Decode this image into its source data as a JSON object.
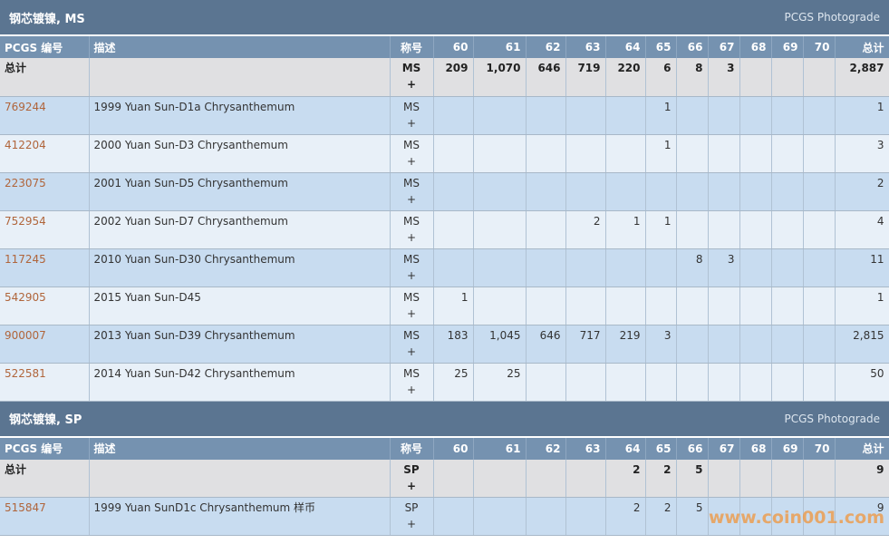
{
  "sections": [
    {
      "title": "钢芯镀镍, MS",
      "link": "PCGS Photograde",
      "header": [
        "PCGS 编号",
        "描述",
        "称号",
        "60",
        "61",
        "62",
        "63",
        "64",
        "65",
        "66",
        "67",
        "68",
        "69",
        "70",
        "总计"
      ],
      "total": {
        "label": "总计",
        "designation": "MS",
        "plus": "+",
        "counts": [
          "209",
          "1,070",
          "646",
          "719",
          "220",
          "6",
          "8",
          "3",
          null,
          null,
          null
        ],
        "total": "2,887"
      },
      "rows": [
        {
          "id": "769244",
          "description": "1999 Yuan Sun-D1a Chrysanthemum",
          "designation": "MS",
          "plus": "+",
          "counts": [
            null,
            null,
            null,
            null,
            null,
            "1",
            null,
            null,
            null,
            null,
            null
          ],
          "total": "1"
        },
        {
          "id": "412204",
          "description": "2000 Yuan Sun-D3 Chrysanthemum",
          "designation": "MS",
          "plus": "+",
          "counts": [
            null,
            null,
            null,
            null,
            null,
            "1",
            null,
            null,
            null,
            null,
            null
          ],
          "total": "3"
        },
        {
          "id": "223075",
          "description": "2001 Yuan Sun-D5 Chrysanthemum",
          "designation": "MS",
          "plus": "+",
          "counts": [
            null,
            null,
            null,
            null,
            null,
            null,
            null,
            null,
            null,
            null,
            null
          ],
          "total": "2"
        },
        {
          "id": "752954",
          "description": "2002 Yuan Sun-D7 Chrysanthemum",
          "designation": "MS",
          "plus": "+",
          "counts": [
            null,
            null,
            null,
            "2",
            "1",
            "1",
            null,
            null,
            null,
            null,
            null
          ],
          "total": "4"
        },
        {
          "id": "117245",
          "description": "2010 Yuan Sun-D30 Chrysanthemum",
          "designation": "MS",
          "plus": "+",
          "counts": [
            null,
            null,
            null,
            null,
            null,
            null,
            "8",
            "3",
            null,
            null,
            null
          ],
          "total": "11"
        },
        {
          "id": "542905",
          "description": "2015 Yuan Sun-D45",
          "designation": "MS",
          "plus": "+",
          "counts": [
            "1",
            null,
            null,
            null,
            null,
            null,
            null,
            null,
            null,
            null,
            null
          ],
          "total": "1"
        },
        {
          "id": "900007",
          "description": "2013 Yuan Sun-D39 Chrysanthemum",
          "designation": "MS",
          "plus": "+",
          "counts": [
            "183",
            "1,045",
            "646",
            "717",
            "219",
            "3",
            null,
            null,
            null,
            null,
            null
          ],
          "total": "2,815"
        },
        {
          "id": "522581",
          "description": "2014 Yuan Sun-D42 Chrysanthemum",
          "designation": "MS",
          "plus": "+",
          "counts": [
            "25",
            "25",
            null,
            null,
            null,
            null,
            null,
            null,
            null,
            null,
            null
          ],
          "total": "50"
        }
      ]
    },
    {
      "title": "钢芯镀镍, SP",
      "link": "PCGS Photograde",
      "header": [
        "PCGS 编号",
        "描述",
        "称号",
        "60",
        "61",
        "62",
        "63",
        "64",
        "65",
        "66",
        "67",
        "68",
        "69",
        "70",
        "总计"
      ],
      "total": {
        "label": "总计",
        "designation": "SP",
        "plus": "+",
        "counts": [
          null,
          null,
          null,
          null,
          "2",
          "2",
          "5",
          null,
          null,
          null,
          null
        ],
        "total": "9"
      },
      "rows": [
        {
          "id": "515847",
          "description": "1999 Yuan SunD1c Chrysanthemum 样币",
          "designation": "SP",
          "plus": "+",
          "counts": [
            null,
            null,
            null,
            null,
            "2",
            "2",
            "5",
            null,
            null,
            null,
            null
          ],
          "total": "9"
        }
      ]
    }
  ],
  "watermark": "www.coin001.com"
}
